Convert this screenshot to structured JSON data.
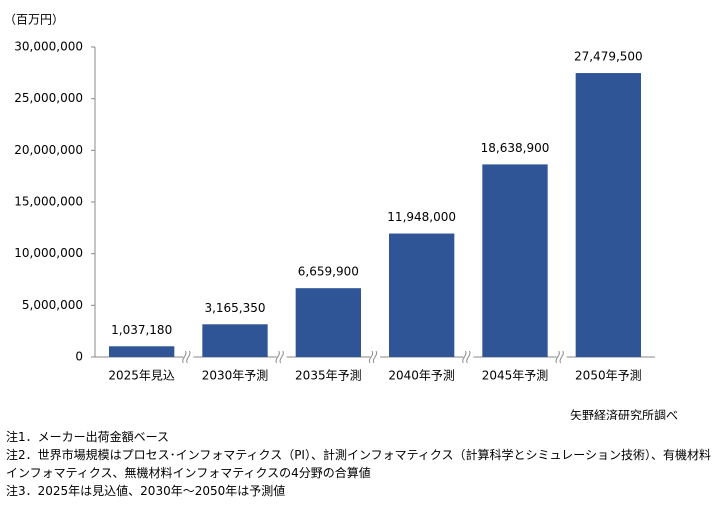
{
  "chart_data": {
    "type": "bar",
    "y_axis_label": "（百万円）",
    "categories": [
      "2025年見込",
      "2030年予測",
      "2035年予測",
      "2040年予測",
      "2045年予測",
      "2050年予測"
    ],
    "values": [
      1037180,
      3165350,
      6659900,
      11948000,
      18638900,
      27479500
    ],
    "value_labels": [
      "1,037,180",
      "3,165,350",
      "6,659,900",
      "11,948,000",
      "18,638,900",
      "27,479,500"
    ],
    "color": "#2f5597",
    "ylim": [
      0,
      30000000
    ],
    "yticks": [
      0,
      {
        "value": 5000000,
        "label": "5,000,000"
      },
      {
        "value": 10000000,
        "label": "10,000,000"
      },
      {
        "value": 15000000,
        "label": "15,000,000"
      },
      {
        "value": 20000000,
        "label": "20,000,000"
      },
      {
        "value": 25000000,
        "label": "25,000,000"
      },
      {
        "value": 30000000,
        "label": "30,000,000"
      }
    ],
    "grid": false,
    "source": "矢野経済研究所調べ",
    "notes": [
      "注1．メーカー出荷金額ベース",
      "注2．世界市場規模はプロセス･インフォマティクス（PI）、計測インフォマティクス（計算科学とシミュレーション技術）、有機材料インフォマティクス、無機材料インフォマティクスの4分野の合算値",
      "注3．2025年は見込値、2030年～2050年は予測値"
    ]
  }
}
